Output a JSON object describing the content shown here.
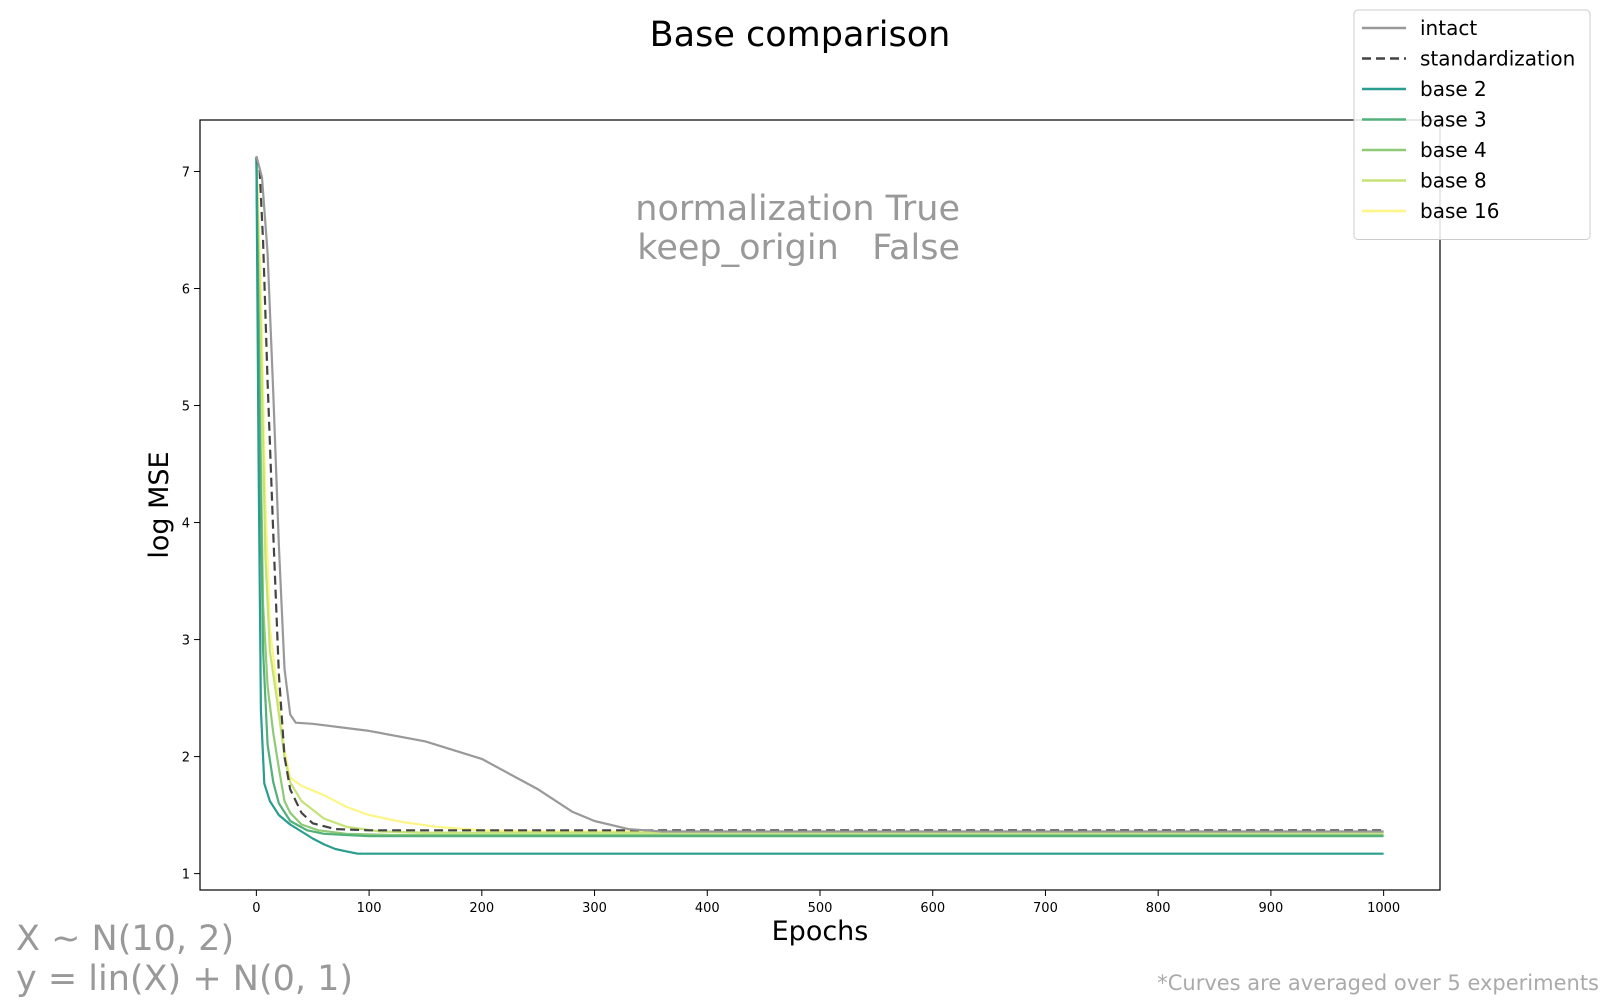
{
  "chart_data": {
    "type": "line",
    "title": "Base comparison",
    "xlabel": "Epochs",
    "ylabel": "log MSE",
    "xlim": [
      -50,
      1050
    ],
    "ylim": [
      0.86,
      7.44
    ],
    "xticks": [
      0,
      100,
      200,
      300,
      400,
      500,
      600,
      700,
      800,
      900,
      1000
    ],
    "yticks": [
      1,
      2,
      3,
      4,
      5,
      6,
      7
    ],
    "grid": false,
    "legend_position": "top-right",
    "annotation": [
      "normalization True",
      "keep_origin   False"
    ],
    "series": [
      {
        "name": "intact",
        "color": "#999999",
        "dash": "solid",
        "points": [
          [
            0,
            7.13
          ],
          [
            5,
            6.95
          ],
          [
            10,
            6.3
          ],
          [
            15,
            5.1
          ],
          [
            20,
            3.8
          ],
          [
            25,
            2.75
          ],
          [
            30,
            2.36
          ],
          [
            35,
            2.29
          ],
          [
            50,
            2.28
          ],
          [
            100,
            2.22
          ],
          [
            150,
            2.13
          ],
          [
            200,
            1.98
          ],
          [
            250,
            1.72
          ],
          [
            280,
            1.53
          ],
          [
            300,
            1.45
          ],
          [
            330,
            1.38
          ],
          [
            360,
            1.36
          ],
          [
            400,
            1.36
          ],
          [
            1000,
            1.36
          ]
        ]
      },
      {
        "name": "standardization",
        "color": "#444444",
        "dash": "dashed",
        "points": [
          [
            0,
            7.13
          ],
          [
            3,
            7.0
          ],
          [
            6,
            6.4
          ],
          [
            10,
            5.2
          ],
          [
            15,
            3.9
          ],
          [
            20,
            2.7
          ],
          [
            25,
            2.0
          ],
          [
            30,
            1.72
          ],
          [
            40,
            1.52
          ],
          [
            50,
            1.43
          ],
          [
            70,
            1.38
          ],
          [
            100,
            1.37
          ],
          [
            200,
            1.37
          ],
          [
            1000,
            1.37
          ]
        ]
      },
      {
        "name": "base 2",
        "color": "#2a9d8f",
        "dash": "solid",
        "points": [
          [
            0,
            7.12
          ],
          [
            2,
            4.5
          ],
          [
            4,
            2.4
          ],
          [
            7,
            1.77
          ],
          [
            12,
            1.62
          ],
          [
            20,
            1.5
          ],
          [
            30,
            1.42
          ],
          [
            40,
            1.36
          ],
          [
            50,
            1.3
          ],
          [
            60,
            1.25
          ],
          [
            70,
            1.21
          ],
          [
            80,
            1.19
          ],
          [
            90,
            1.17
          ],
          [
            100,
            1.17
          ],
          [
            1000,
            1.17
          ]
        ]
      },
      {
        "name": "base 3",
        "color": "#52b07a",
        "dash": "solid",
        "points": [
          [
            0,
            7.12
          ],
          [
            3,
            4.8
          ],
          [
            6,
            2.9
          ],
          [
            10,
            2.1
          ],
          [
            15,
            1.78
          ],
          [
            20,
            1.6
          ],
          [
            30,
            1.45
          ],
          [
            45,
            1.37
          ],
          [
            60,
            1.34
          ],
          [
            80,
            1.33
          ],
          [
            100,
            1.32
          ],
          [
            1000,
            1.32
          ]
        ]
      },
      {
        "name": "base 4",
        "color": "#8fca77",
        "dash": "solid",
        "points": [
          [
            0,
            7.12
          ],
          [
            3,
            5.2
          ],
          [
            6,
            3.3
          ],
          [
            10,
            2.6
          ],
          [
            15,
            2.2
          ],
          [
            20,
            1.9
          ],
          [
            25,
            1.62
          ],
          [
            30,
            1.52
          ],
          [
            40,
            1.42
          ],
          [
            55,
            1.37
          ],
          [
            80,
            1.34
          ],
          [
            120,
            1.33
          ],
          [
            1000,
            1.33
          ]
        ]
      },
      {
        "name": "base 8",
        "color": "#c6e377",
        "dash": "solid",
        "points": [
          [
            0,
            7.12
          ],
          [
            4,
            5.6
          ],
          [
            8,
            3.7
          ],
          [
            12,
            2.9
          ],
          [
            18,
            2.5
          ],
          [
            25,
            2.0
          ],
          [
            30,
            1.78
          ],
          [
            40,
            1.62
          ],
          [
            60,
            1.47
          ],
          [
            80,
            1.4
          ],
          [
            110,
            1.36
          ],
          [
            150,
            1.35
          ],
          [
            1000,
            1.35
          ]
        ]
      },
      {
        "name": "base 16",
        "color": "#fdf586",
        "dash": "solid",
        "points": [
          [
            0,
            7.12
          ],
          [
            4,
            6.0
          ],
          [
            8,
            4.2
          ],
          [
            12,
            3.1
          ],
          [
            18,
            2.6
          ],
          [
            25,
            2.05
          ],
          [
            30,
            1.82
          ],
          [
            40,
            1.75
          ],
          [
            60,
            1.67
          ],
          [
            80,
            1.57
          ],
          [
            100,
            1.5
          ],
          [
            130,
            1.44
          ],
          [
            160,
            1.4
          ],
          [
            200,
            1.37
          ],
          [
            250,
            1.36
          ],
          [
            1000,
            1.36
          ]
        ]
      }
    ]
  },
  "footer": {
    "formula_line1": "X ~ N(10, 2)",
    "formula_line2": "y = lin(X) + N(0, 1)",
    "note": "*Curves are averaged over 5 experiments"
  }
}
